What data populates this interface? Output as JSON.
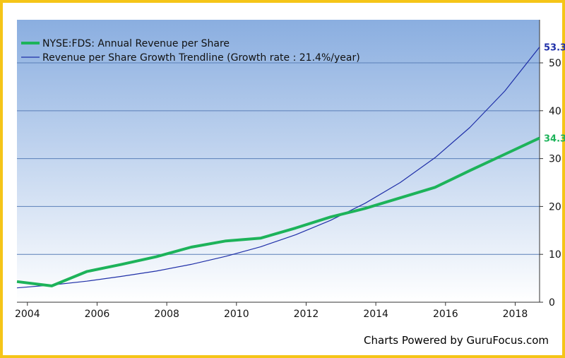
{
  "chart_data": {
    "type": "line",
    "title": "",
    "xlabel": "",
    "ylabel": "",
    "xlim": [
      2003.7,
      2018.7
    ],
    "ylim": [
      0,
      59
    ],
    "x_ticks": [
      "2004",
      "2006",
      "2008",
      "2010",
      "2012",
      "2014",
      "2016",
      "2018"
    ],
    "y_ticks": [
      "0",
      "10",
      "20",
      "30",
      "40",
      "50"
    ],
    "grid": true,
    "legend_position": "top-left",
    "series": [
      {
        "name": "NYSE:FDS: Annual Revenue per Share",
        "color": "#1db35a",
        "x": [
          2003.7,
          2004.7,
          2005.7,
          2006.7,
          2007.7,
          2008.7,
          2009.7,
          2010.7,
          2011.7,
          2012.7,
          2013.7,
          2014.7,
          2015.7,
          2016.7,
          2017.7,
          2018.7
        ],
        "y": [
          4.3,
          3.4,
          6.4,
          7.9,
          9.5,
          11.5,
          12.8,
          13.4,
          15.5,
          17.8,
          19.6,
          21.8,
          24.0,
          27.5,
          30.9,
          34.3
        ],
        "end_label": "34.3"
      },
      {
        "name": "Revenue per Share Growth Trendline (Growth rate : 21.4%/year)",
        "color": "#1f2fa8",
        "x": [
          2003.7,
          2004.7,
          2005.7,
          2006.7,
          2007.7,
          2008.7,
          2009.7,
          2010.7,
          2011.7,
          2012.7,
          2013.7,
          2014.7,
          2015.7,
          2016.7,
          2017.7,
          2018.7
        ],
        "y": [
          3.0,
          3.6,
          4.4,
          5.4,
          6.5,
          7.9,
          9.6,
          11.6,
          14.1,
          17.1,
          20.7,
          25.0,
          30.2,
          36.5,
          44.1,
          53.3
        ],
        "end_label": "53.3"
      }
    ]
  },
  "credit": "Charts Powered by GuruFocus.com"
}
